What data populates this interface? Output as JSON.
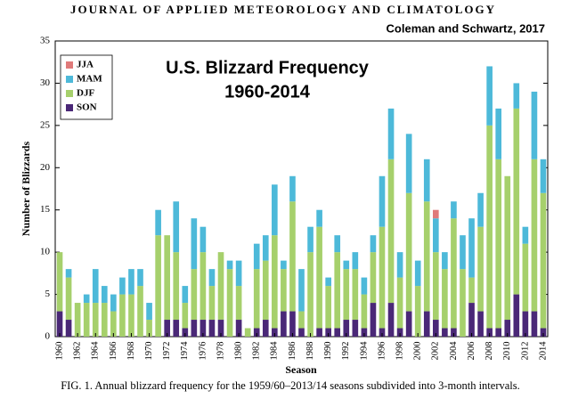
{
  "chart_data": {
    "type": "stacked_bar",
    "journal": "JOURNAL OF APPLIED METEOROLOGY AND CLIMATOLOGY",
    "credit": "Coleman and Schwartz, 2017",
    "title": "U.S. Blizzard Frequency",
    "subtitle": "1960-2014",
    "y_label": "Number of Blizzards",
    "x_label": "Season",
    "caption": "FIG. 1. Annual blizzard frequency for the 1959/60–2013/14 seasons subdivided into 3-month intervals.",
    "categories": [
      "1960",
      null,
      "1962",
      null,
      "1964",
      null,
      "1966",
      null,
      "1968",
      null,
      "1970",
      null,
      "1972",
      null,
      "1974",
      null,
      "1976",
      null,
      "1978",
      null,
      "1980",
      null,
      "1982",
      null,
      "1984",
      null,
      "1986",
      null,
      "1988",
      null,
      "1990",
      null,
      "1992",
      null,
      "1994",
      null,
      "1996",
      null,
      "1998",
      null,
      "2000",
      null,
      "2002",
      null,
      "2004",
      null,
      "2006",
      null,
      "2008",
      null,
      "2010",
      null,
      "2012",
      null,
      "2014"
    ],
    "series": [
      {
        "name": "SON",
        "color": "#4a2877",
        "values": [
          3,
          2,
          0,
          0,
          0,
          0,
          0,
          0,
          0,
          0,
          0,
          0,
          2,
          2,
          1,
          2,
          2,
          2,
          2,
          0,
          2,
          0,
          1,
          2,
          1,
          3,
          3,
          1,
          0,
          1,
          1,
          1,
          2,
          2,
          1,
          4,
          1,
          4,
          1,
          3,
          0,
          3,
          2,
          1,
          1,
          0,
          4,
          3,
          1,
          1,
          2,
          5,
          3,
          3,
          1
        ]
      },
      {
        "name": "DJF",
        "color": "#a6d06c",
        "values": [
          7,
          5,
          4,
          4,
          4,
          4,
          3,
          5,
          5,
          6,
          2,
          12,
          10,
          8,
          3,
          6,
          8,
          4,
          8,
          8,
          4,
          1,
          7,
          7,
          11,
          5,
          13,
          2,
          10,
          12,
          5,
          9,
          6,
          6,
          4,
          6,
          12,
          17,
          6,
          14,
          6,
          13,
          8,
          7,
          13,
          8,
          3,
          10,
          24,
          20,
          17,
          22,
          8,
          18,
          16
        ]
      },
      {
        "name": "MAM",
        "color": "#4db9d9",
        "values": [
          0,
          1,
          0,
          1,
          4,
          2,
          2,
          2,
          3,
          2,
          2,
          3,
          0,
          6,
          2,
          6,
          3,
          2,
          0,
          1,
          3,
          0,
          3,
          3,
          6,
          1,
          3,
          5,
          3,
          2,
          1,
          2,
          1,
          2,
          2,
          2,
          6,
          6,
          3,
          7,
          3,
          5,
          4,
          2,
          2,
          4,
          7,
          4,
          7,
          6,
          0,
          3,
          2,
          8,
          4
        ]
      },
      {
        "name": "JJA",
        "color": "#e07a7a",
        "values": [
          0,
          0,
          0,
          0,
          0,
          0,
          0,
          0,
          0,
          0,
          0,
          0,
          0,
          0,
          0,
          0,
          0,
          0,
          0,
          0,
          0,
          0,
          0,
          0,
          0,
          0,
          0,
          0,
          0,
          0,
          0,
          0,
          0,
          0,
          0,
          0,
          0,
          0,
          0,
          0,
          0,
          0,
          1,
          0,
          0,
          0,
          0,
          0,
          0,
          0,
          0,
          0,
          0,
          0,
          0
        ]
      }
    ],
    "ylim": [
      0,
      35
    ],
    "yticks": [
      0,
      5,
      10,
      15,
      20,
      25,
      30,
      35
    ],
    "grid": false,
    "legend": "upper left"
  }
}
